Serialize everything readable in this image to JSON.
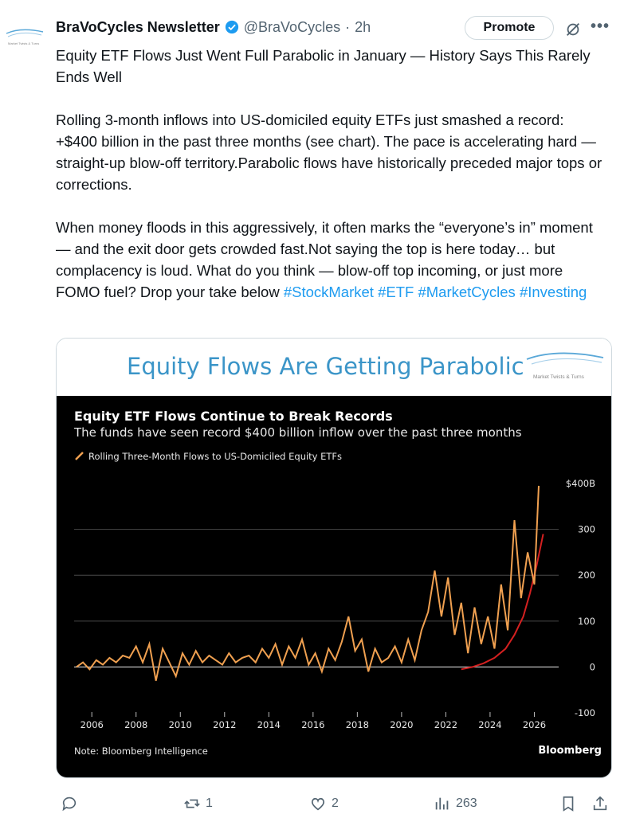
{
  "post": {
    "author_name": "BraVoCycles Newsletter",
    "handle": "@BraVoCycles",
    "separator": "·",
    "time": "2h",
    "promote_label": "Promote",
    "more_label": "•••",
    "avatar_text": "Market Twists & Turns",
    "paragraph1": "Equity ETF Flows Just Went Full Parabolic in January — History Says This Rarely Ends Well",
    "paragraph2": "Rolling 3-month inflows into US-domiciled equity ETFs just smashed a record: +$400 billion in the past three months (see chart). The pace is accelerating hard — straight-up blow-off territory.Parabolic flows have historically preceded major tops or corrections.",
    "paragraph3_text": "When money floods in this aggressively, it often marks the “everyone’s in” moment — and the exit door gets crowded fast.Not saying the top is here today… but complacency is loud. What do you think — blow-off top incoming, or just more FOMO fuel? Drop your take below ",
    "hashtags": [
      "#StockMarket",
      "#ETF",
      "#MarketCycles",
      "#Investing"
    ]
  },
  "card": {
    "title": "Equity Flows Are Getting Parabolic",
    "logo_text": "Market Twists & Turns"
  },
  "actions": {
    "reply_count": "",
    "repost_count": "1",
    "like_count": "2",
    "views_count": "263"
  },
  "colors": {
    "accent": "#1d9bf0",
    "card_title": "#3b95c8",
    "line": "#f0a050",
    "trend": "#d42020",
    "chart_bg": "#000000"
  },
  "chart_data": {
    "type": "line",
    "title": "Equity ETF Flows Continue to Break Records",
    "subtitle": "The funds have seen record $400 billion inflow over the past three months",
    "legend": "Rolling Three-Month Flows to US-Domiciled Equity ETFs",
    "note": "Note: Bloomberg Intelligence",
    "source": "Bloomberg",
    "xlim": [
      2005.2,
      2027.1
    ],
    "ylim": [
      -100,
      400
    ],
    "x_ticks": [
      "2006",
      "2008",
      "2010",
      "2012",
      "2014",
      "2016",
      "2018",
      "2020",
      "2022",
      "2024",
      "2026"
    ],
    "y_ticks": [
      "$400B",
      "300",
      "200",
      "100",
      "0",
      "-100"
    ],
    "grid": true,
    "series": [
      {
        "name": "Rolling Three-Month Flows to US-Domiciled Equity ETFs",
        "x": [
          2005.3,
          2005.6,
          2005.9,
          2006.2,
          2006.5,
          2006.8,
          2007.1,
          2007.4,
          2007.7,
          2008.0,
          2008.3,
          2008.6,
          2008.9,
          2009.2,
          2009.5,
          2009.8,
          2010.1,
          2010.4,
          2010.7,
          2011.0,
          2011.3,
          2011.6,
          2011.9,
          2012.2,
          2012.5,
          2012.8,
          2013.1,
          2013.4,
          2013.7,
          2014.0,
          2014.3,
          2014.6,
          2014.9,
          2015.2,
          2015.5,
          2015.8,
          2016.1,
          2016.4,
          2016.7,
          2017.0,
          2017.3,
          2017.6,
          2017.9,
          2018.2,
          2018.5,
          2018.8,
          2019.1,
          2019.4,
          2019.7,
          2020.0,
          2020.3,
          2020.6,
          2020.9,
          2021.2,
          2021.5,
          2021.8,
          2022.1,
          2022.4,
          2022.7,
          2023.0,
          2023.3,
          2023.6,
          2023.9,
          2024.2,
          2024.5,
          2024.8,
          2025.1,
          2025.4,
          2025.7,
          2026.0,
          2026.2
        ],
        "values": [
          0,
          10,
          -5,
          15,
          5,
          20,
          10,
          25,
          20,
          45,
          10,
          50,
          -30,
          40,
          10,
          -20,
          30,
          5,
          35,
          10,
          25,
          15,
          5,
          30,
          10,
          20,
          25,
          10,
          40,
          20,
          50,
          5,
          45,
          20,
          60,
          5,
          30,
          -10,
          40,
          15,
          55,
          110,
          35,
          60,
          -10,
          40,
          10,
          20,
          45,
          10,
          60,
          15,
          80,
          120,
          210,
          110,
          195,
          70,
          140,
          30,
          130,
          50,
          110,
          40,
          180,
          80,
          320,
          150,
          250,
          180,
          395
        ]
      }
    ],
    "trend": {
      "x": [
        2022.7,
        2023.2,
        2023.7,
        2024.2,
        2024.7,
        2025.1,
        2025.5,
        2025.8,
        2026.1,
        2026.4
      ],
      "values": [
        -5,
        0,
        8,
        20,
        40,
        70,
        110,
        160,
        220,
        290
      ]
    }
  }
}
